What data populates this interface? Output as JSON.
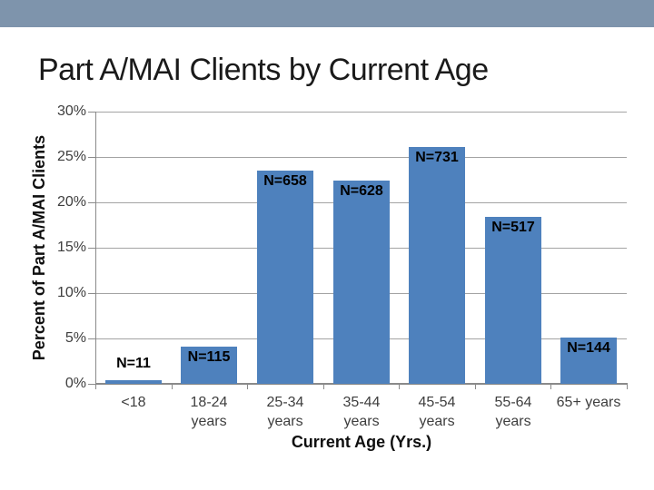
{
  "slide": {
    "title": "Part A/MAI Clients by Current Age"
  },
  "colors": {
    "header_band": "#7E94AC",
    "bar": "#4E81BD",
    "gridline": "#A3A3A3",
    "axis": "#8A8A8A",
    "tick_label": "#3E3E3E",
    "title_text": "#1A1A1A"
  },
  "chart_data": {
    "type": "bar",
    "title": "Part A/MAI Clients by Current Age",
    "xlabel": "Current Age (Yrs.)",
    "ylabel": "Percent of Part A/MAI Clients",
    "ylim": [
      0,
      30
    ],
    "y_tick_step": 5,
    "y_tick_labels": [
      "0%",
      "5%",
      "10%",
      "15%",
      "20%",
      "25%",
      "30%"
    ],
    "grid": true,
    "legend": false,
    "categories": [
      "<18",
      "18-24 years",
      "25-34 years",
      "35-44 years",
      "45-54 years",
      "55-64 years",
      "65+ years"
    ],
    "category_label_lines": [
      [
        "<18"
      ],
      [
        "18-24",
        "years"
      ],
      [
        "25-34",
        "years"
      ],
      [
        "35-44",
        "years"
      ],
      [
        "45-54",
        "years"
      ],
      [
        "55-64",
        "years"
      ],
      [
        "65+ years"
      ]
    ],
    "values_pct": [
      0.4,
      4.1,
      23.5,
      22.4,
      26.1,
      18.4,
      5.1
    ],
    "bar_labels": [
      "N=11",
      "N=115",
      "N=658",
      "N=628",
      "N=731",
      "N=517",
      "N=144"
    ],
    "bar_label_positions": [
      "above",
      "inside",
      "inside",
      "inside",
      "inside",
      "inside",
      "inside"
    ]
  }
}
